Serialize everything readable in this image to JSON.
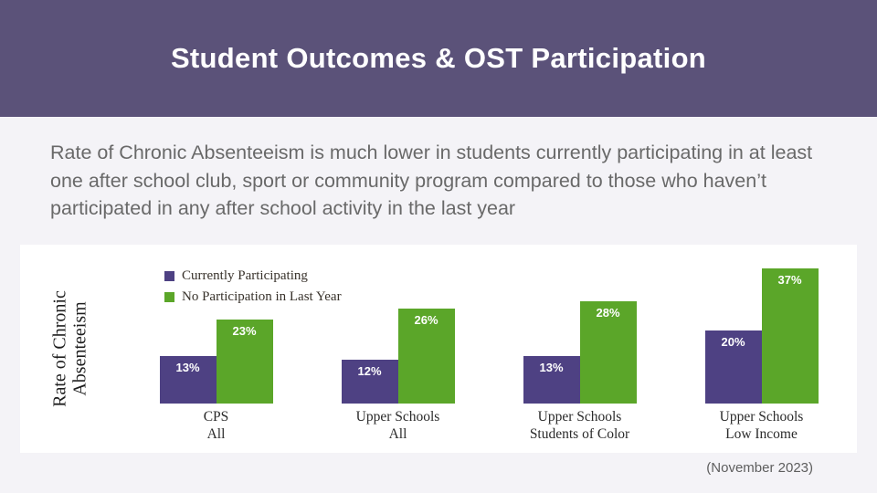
{
  "header": {
    "title": "Student Outcomes & OST Participation"
  },
  "paragraph": "Rate of Chronic Absenteeism is much lower in students currently participating in at least one after school club, sport or community program compared to those who haven’t participated in any after school activity in the last year",
  "footnote": "(November 2023)",
  "colors": {
    "banner_purple": "#5b5279",
    "bar_purple": "#4e4183",
    "bar_green": "#5ba629",
    "panel_background": "#ffffff",
    "slide_background": "#f4f3f7"
  },
  "chart_data": {
    "type": "bar",
    "title": "",
    "ylabel": "Rate of Chronic\nAbsenteeism",
    "xlabel": "",
    "categories": [
      "CPS\nAll",
      "Upper Schools\nAll",
      "Upper Schools\nStudents of Color",
      "Upper Schools\nLow Income"
    ],
    "series": [
      {
        "name": "Currently Participating",
        "color": "#4e4183",
        "values": [
          13,
          12,
          13,
          20
        ]
      },
      {
        "name": "No Participation in Last Year",
        "color": "#5ba629",
        "values": [
          23,
          26,
          28,
          37
        ]
      }
    ],
    "value_suffix": "%",
    "ylim": [
      0,
      40
    ],
    "grid": false,
    "legend_position": "top-left",
    "value_labels": "inside-top, white bold"
  }
}
